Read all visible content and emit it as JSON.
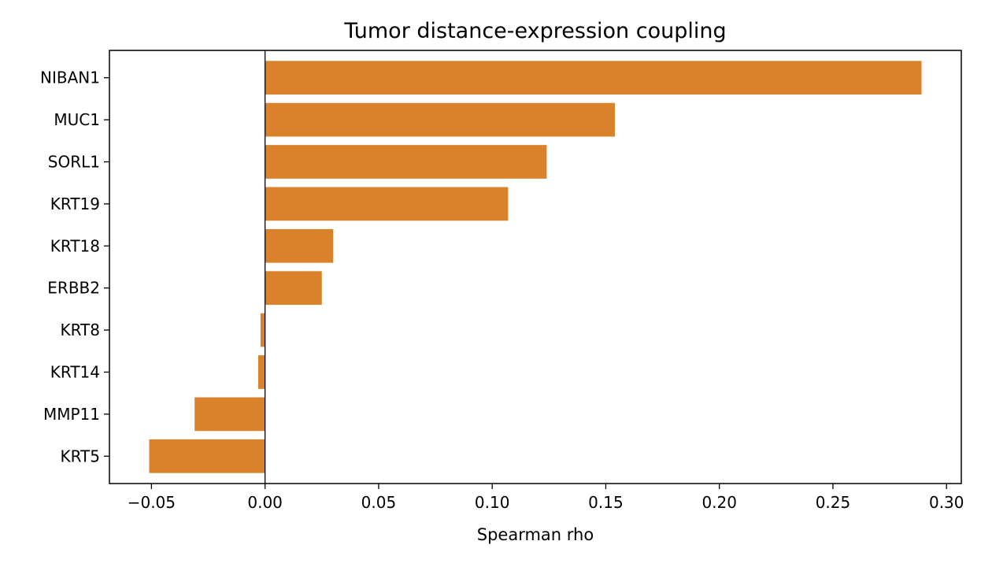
{
  "chart_data": {
    "type": "bar",
    "orientation": "horizontal",
    "title": "Tumor distance-expression coupling",
    "xlabel": "Spearman rho",
    "ylabel": "",
    "categories": [
      "NIBAN1",
      "MUC1",
      "SORL1",
      "KRT19",
      "KRT18",
      "ERBB2",
      "KRT8",
      "KRT14",
      "MMP11",
      "KRT5"
    ],
    "values": [
      0.289,
      0.154,
      0.124,
      0.107,
      0.03,
      0.025,
      -0.002,
      -0.003,
      -0.031,
      -0.051
    ],
    "xlim": [
      -0.0685,
      0.3065
    ],
    "xticks": [
      -0.05,
      0.0,
      0.05,
      0.1,
      0.15,
      0.2,
      0.25,
      0.3
    ],
    "xtick_labels": [
      "−0.05",
      "0.00",
      "0.05",
      "0.10",
      "0.15",
      "0.20",
      "0.25",
      "0.30"
    ],
    "zero_line": true,
    "grid": false,
    "legend": "none",
    "bar_color": "#d9822b"
  }
}
